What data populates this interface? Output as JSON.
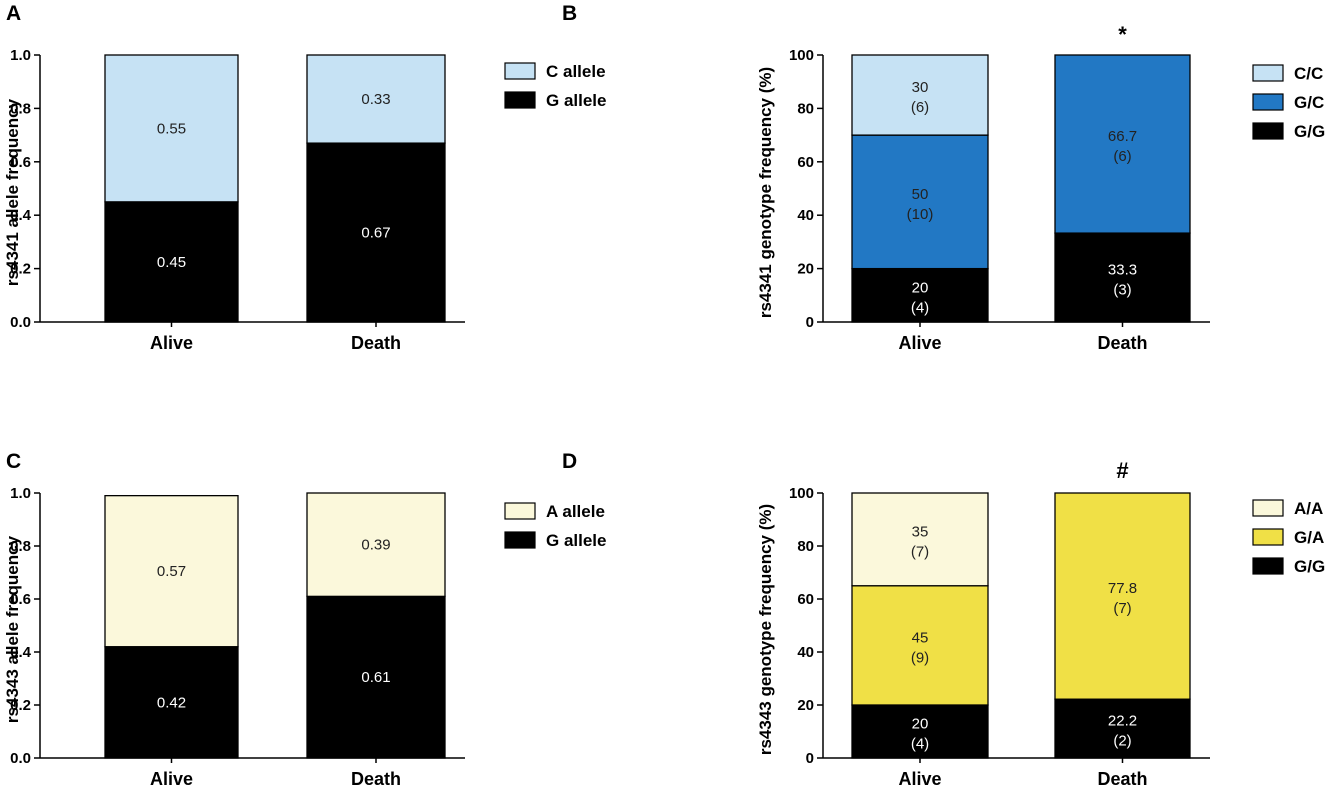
{
  "chart_data": [
    {
      "panel": "A",
      "type": "bar",
      "stacked": true,
      "ylabel": "rs4341 allele frequency",
      "ylim": [
        0,
        1.0
      ],
      "yticks": [
        0.0,
        0.2,
        0.4,
        0.6,
        0.8,
        1.0
      ],
      "ytick_labels": [
        "0.0",
        "0.2",
        "0.4",
        "0.6",
        "0.8",
        "1.0"
      ],
      "categories": [
        "Alive",
        "Death"
      ],
      "significance": "",
      "series": [
        {
          "name": "G allele",
          "color": "#000000",
          "text_color": "#ffffff",
          "values": [
            0.45,
            0.67
          ],
          "labels": [
            "0.45",
            "0.67"
          ],
          "sublabels": [
            "",
            ""
          ]
        },
        {
          "name": "C allele",
          "color": "#c6e2f4",
          "text_color": "#222222",
          "values": [
            0.55,
            0.33
          ],
          "labels": [
            "0.55",
            "0.33"
          ],
          "sublabels": [
            "",
            ""
          ]
        }
      ],
      "legend_order": [
        1,
        0
      ]
    },
    {
      "panel": "B",
      "type": "bar",
      "stacked": true,
      "ylabel": "rs4341 genotype frequency (%)",
      "ylim": [
        0,
        100
      ],
      "yticks": [
        0,
        20,
        40,
        60,
        80,
        100
      ],
      "ytick_labels": [
        "0",
        "20",
        "40",
        "60",
        "80",
        "100"
      ],
      "categories": [
        "Alive",
        "Death"
      ],
      "significance": "*",
      "series": [
        {
          "name": "G/G",
          "color": "#000000",
          "text_color": "#ffffff",
          "values": [
            20,
            33.3
          ],
          "labels": [
            "20",
            "33.3"
          ],
          "sublabels": [
            "(4)",
            "(3)"
          ]
        },
        {
          "name": "G/C",
          "color": "#2278c4",
          "text_color": "#222222",
          "values": [
            50,
            66.7
          ],
          "labels": [
            "50",
            "66.7"
          ],
          "sublabels": [
            "(10)",
            "(6)"
          ]
        },
        {
          "name": "C/C",
          "color": "#c6e2f4",
          "text_color": "#222222",
          "values": [
            30,
            0
          ],
          "labels": [
            "30",
            ""
          ],
          "sublabels": [
            "(6)",
            ""
          ]
        }
      ],
      "legend_order": [
        2,
        1,
        0
      ]
    },
    {
      "panel": "C",
      "type": "bar",
      "stacked": true,
      "ylabel": "rs4343 allele frequency",
      "ylim": [
        0,
        1.0
      ],
      "yticks": [
        0.0,
        0.2,
        0.4,
        0.6,
        0.8,
        1.0
      ],
      "ytick_labels": [
        "0.0",
        "0.2",
        "0.4",
        "0.6",
        "0.8",
        "1.0"
      ],
      "categories": [
        "Alive",
        "Death"
      ],
      "significance": "",
      "series": [
        {
          "name": "G allele",
          "color": "#000000",
          "text_color": "#ffffff",
          "values": [
            0.42,
            0.61
          ],
          "labels": [
            "0.42",
            "0.61"
          ],
          "sublabels": [
            "",
            ""
          ]
        },
        {
          "name": "A allele",
          "color": "#fbf8db",
          "text_color": "#222222",
          "values": [
            0.57,
            0.39
          ],
          "labels": [
            "0.57",
            "0.39"
          ],
          "sublabels": [
            "",
            ""
          ]
        }
      ],
      "legend_order": [
        1,
        0
      ]
    },
    {
      "panel": "D",
      "type": "bar",
      "stacked": true,
      "ylabel": "rs4343 genotype frequency (%)",
      "ylim": [
        0,
        100
      ],
      "yticks": [
        0,
        20,
        40,
        60,
        80,
        100
      ],
      "ytick_labels": [
        "0",
        "20",
        "40",
        "60",
        "80",
        "100"
      ],
      "categories": [
        "Alive",
        "Death"
      ],
      "significance": "#",
      "series": [
        {
          "name": "G/G",
          "color": "#000000",
          "text_color": "#ffffff",
          "values": [
            20,
            22.2
          ],
          "labels": [
            "20",
            "22.2"
          ],
          "sublabels": [
            "(4)",
            "(2)"
          ]
        },
        {
          "name": "G/A",
          "color": "#f0e046",
          "text_color": "#222222",
          "values": [
            45,
            77.8
          ],
          "labels": [
            "45",
            "77.8"
          ],
          "sublabels": [
            "(9)",
            "(7)"
          ]
        },
        {
          "name": "A/A",
          "color": "#fbf8db",
          "text_color": "#222222",
          "values": [
            35,
            0
          ],
          "labels": [
            "35",
            ""
          ],
          "sublabels": [
            "(7)",
            ""
          ]
        }
      ],
      "legend_order": [
        2,
        1,
        0
      ]
    }
  ]
}
